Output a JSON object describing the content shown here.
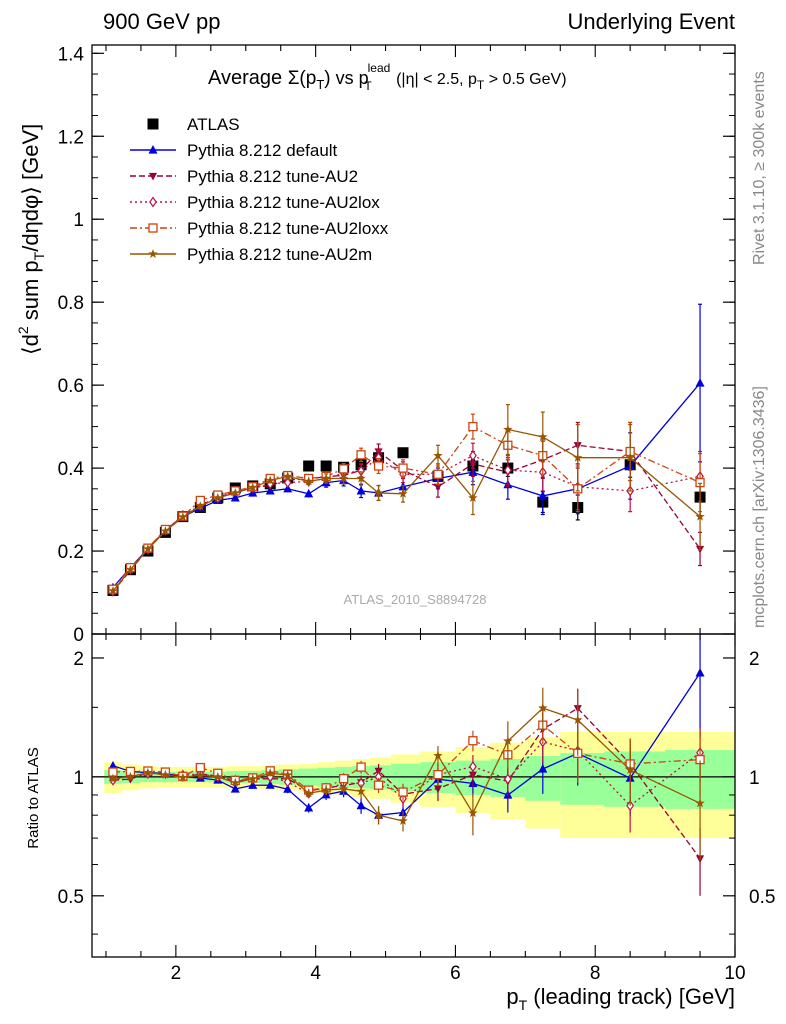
{
  "header": {
    "left": "900 GeV pp",
    "right": "Underlying Event"
  },
  "side_labels": {
    "rivet": "Rivet 3.1.10, ≥ 300k events",
    "mcplots": "mcplots.cern.ch [arXiv:1306.3436]"
  },
  "colors": {
    "ATLAS": "#000000",
    "default": "#0000dd",
    "AU2": "#990033",
    "AU2lox": "#bb1144",
    "AU2loxx": "#cc4411",
    "AU2m": "#995500",
    "band_inner": "#99ff99",
    "band_outer": "#ffff99"
  },
  "chart_data": [
    {
      "type": "line",
      "title": "Average Σ(p_T) vs p_T^lead (|η| < 2.5, p_T > 0.5 GeV)",
      "title_parts": {
        "average": "Average ",
        "sigma": "Σ(p",
        "sigma_sub": "T",
        "sigma_close": ")",
        "vs": " vs p",
        "vs_sup": "lead",
        "vs_sub": "T",
        "cuts": " (|η| < 2.5, p",
        "cuts_sub": "T",
        "cuts_tail": " > 0.5 GeV)"
      },
      "ylabel": "⟨d² sum p_T/dηdφ⟩ [GeV]",
      "ylabel_parts": {
        "a": "⟨d",
        "a_sup": "2",
        "b": " sum p",
        "b_sub": "T",
        "c": "/dηdφ⟩ [GeV]"
      },
      "watermark": "ATLAS_2010_S8894728",
      "xlim": [
        0.8,
        10.0
      ],
      "ylim": [
        0.0,
        1.42
      ],
      "yticks": [
        0,
        0.2,
        0.4,
        0.6,
        0.8,
        1,
        1.2,
        1.4
      ],
      "ytick_labels": [
        "0",
        "0.2",
        "0.4",
        "0.6",
        "0.8",
        "1",
        "1.2",
        "1.4"
      ],
      "legend_position": "top-left",
      "x": [
        1.1,
        1.35,
        1.6,
        1.85,
        2.1,
        2.35,
        2.6,
        2.85,
        3.1,
        3.35,
        3.6,
        3.9,
        4.15,
        4.4,
        4.65,
        4.9,
        5.25,
        5.75,
        6.25,
        6.75,
        7.25,
        7.75,
        8.5,
        9.5
      ],
      "series": [
        {
          "key": "ATLAS",
          "name": "ATLAS",
          "marker": "square-filled",
          "line": "none",
          "values": [
            0.105,
            0.155,
            0.2,
            0.245,
            0.283,
            0.305,
            0.328,
            0.352,
            0.357,
            0.362,
            0.376,
            0.405,
            0.405,
            0.402,
            0.408,
            0.425,
            0.437,
            0.38,
            0.405,
            0.4,
            0.318,
            0.305,
            0.408,
            0.33
          ],
          "errors": [
            0.003,
            0.003,
            0.003,
            0.003,
            0.003,
            0.003,
            0.003,
            0.003,
            0.004,
            0.004,
            0.004,
            0.004,
            0.005,
            0.006,
            0.007,
            0.008,
            0.009,
            0.012,
            0.015,
            0.02,
            0.025,
            0.03,
            0.03,
            0.05
          ]
        },
        {
          "key": "default",
          "name": "Pythia 8.212 default",
          "marker": "triangle-up-filled",
          "line": "solid",
          "values": [
            0.112,
            0.16,
            0.205,
            0.25,
            0.283,
            0.303,
            0.322,
            0.328,
            0.34,
            0.345,
            0.35,
            0.338,
            0.365,
            0.37,
            0.345,
            0.34,
            0.355,
            0.375,
            0.39,
            0.36,
            0.333,
            0.35,
            0.405,
            0.605
          ],
          "errors": [
            0.002,
            0.002,
            0.003,
            0.003,
            0.003,
            0.004,
            0.004,
            0.005,
            0.006,
            0.007,
            0.008,
            0.009,
            0.011,
            0.013,
            0.016,
            0.018,
            0.02,
            0.025,
            0.03,
            0.035,
            0.045,
            0.06,
            0.08,
            0.19
          ]
        },
        {
          "key": "AU2",
          "name": "Pythia 8.212 tune-AU2",
          "marker": "triangle-down-filled",
          "line": "dashed",
          "values": [
            0.103,
            0.153,
            0.205,
            0.248,
            0.282,
            0.31,
            0.33,
            0.342,
            0.353,
            0.358,
            0.372,
            0.373,
            0.38,
            0.382,
            0.395,
            0.44,
            0.395,
            0.355,
            0.41,
            0.39,
            0.42,
            0.455,
            0.44,
            0.205
          ],
          "errors": [
            0.002,
            0.002,
            0.003,
            0.003,
            0.003,
            0.004,
            0.004,
            0.005,
            0.006,
            0.007,
            0.008,
            0.009,
            0.011,
            0.013,
            0.016,
            0.018,
            0.02,
            0.025,
            0.03,
            0.035,
            0.045,
            0.055,
            0.07,
            0.04
          ]
        },
        {
          "key": "AU2lox",
          "name": "Pythia 8.212 tune-AU2lox",
          "marker": "diamond-open",
          "line": "dotted",
          "values": [
            0.103,
            0.156,
            0.204,
            0.25,
            0.286,
            0.31,
            0.328,
            0.345,
            0.352,
            0.362,
            0.365,
            0.368,
            0.375,
            0.388,
            0.393,
            0.425,
            0.385,
            0.385,
            0.43,
            0.395,
            0.39,
            0.355,
            0.345,
            0.38
          ],
          "errors": [
            0.002,
            0.002,
            0.003,
            0.003,
            0.003,
            0.004,
            0.004,
            0.005,
            0.006,
            0.007,
            0.008,
            0.009,
            0.011,
            0.013,
            0.016,
            0.018,
            0.02,
            0.025,
            0.03,
            0.035,
            0.045,
            0.055,
            0.05,
            0.06
          ]
        },
        {
          "key": "AU2loxx",
          "name": "Pythia 8.212 tune-AU2loxx",
          "marker": "square-open",
          "line": "dashdot",
          "values": [
            0.108,
            0.16,
            0.207,
            0.252,
            0.284,
            0.322,
            0.335,
            0.345,
            0.355,
            0.375,
            0.382,
            0.375,
            0.38,
            0.398,
            0.432,
            0.405,
            0.4,
            0.385,
            0.5,
            0.455,
            0.43,
            0.35,
            0.44,
            0.365
          ],
          "errors": [
            0.002,
            0.002,
            0.003,
            0.003,
            0.003,
            0.004,
            0.004,
            0.005,
            0.006,
            0.007,
            0.008,
            0.009,
            0.011,
            0.013,
            0.016,
            0.018,
            0.02,
            0.025,
            0.03,
            0.035,
            0.045,
            0.055,
            0.07,
            0.07
          ]
        },
        {
          "key": "AU2m",
          "name": "Pythia 8.212 tune-AU2m",
          "marker": "star",
          "line": "solid",
          "values": [
            0.104,
            0.155,
            0.205,
            0.248,
            0.282,
            0.308,
            0.328,
            0.34,
            0.353,
            0.37,
            0.38,
            0.368,
            0.375,
            0.375,
            0.375,
            0.34,
            0.338,
            0.43,
            0.328,
            0.493,
            0.475,
            0.425,
            0.425,
            0.283
          ],
          "errors": [
            0.002,
            0.002,
            0.003,
            0.003,
            0.003,
            0.004,
            0.004,
            0.005,
            0.006,
            0.007,
            0.008,
            0.009,
            0.011,
            0.013,
            0.016,
            0.018,
            0.02,
            0.025,
            0.04,
            0.06,
            0.06,
            0.08,
            0.08,
            0.08
          ]
        }
      ]
    },
    {
      "type": "line",
      "title": "",
      "ylabel": "Ratio to ATLAS",
      "xlabel": "p_T (leading track) [GeV]",
      "xlabel_parts": {
        "a": "p",
        "a_sub": "T",
        "b": " (leading track) [GeV]"
      },
      "xlim": [
        0.8,
        10.0
      ],
      "ylim": [
        0.35,
        2.3
      ],
      "xticks": [
        2,
        4,
        6,
        8,
        10
      ],
      "xtick_labels": [
        "2",
        "4",
        "6",
        "8",
        "10"
      ],
      "yticks": [
        0.5,
        1,
        2
      ],
      "ytick_labels": [
        "0.5",
        "1",
        "2"
      ],
      "reference": 1,
      "band_inner_halfwidth": [
        0.04,
        0.035,
        0.03,
        0.03,
        0.03,
        0.03,
        0.03,
        0.035,
        0.035,
        0.04,
        0.045,
        0.05,
        0.055,
        0.06,
        0.065,
        0.07,
        0.08,
        0.09,
        0.1,
        0.11,
        0.13,
        0.15,
        0.16,
        0.17
      ],
      "band_outer_halfwidth": [
        0.09,
        0.075,
        0.065,
        0.06,
        0.06,
        0.06,
        0.06,
        0.065,
        0.065,
        0.07,
        0.075,
        0.08,
        0.09,
        0.1,
        0.11,
        0.12,
        0.14,
        0.16,
        0.19,
        0.22,
        0.26,
        0.3,
        0.3,
        0.3
      ]
    }
  ]
}
